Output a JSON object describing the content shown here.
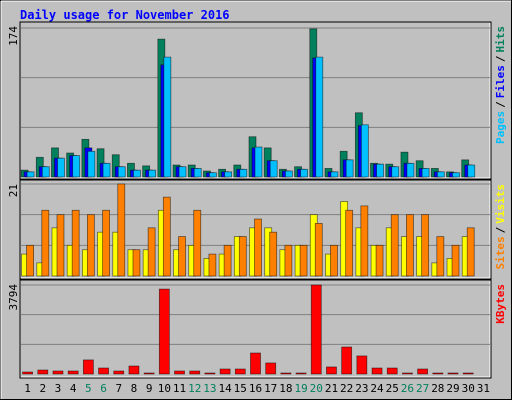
{
  "chart_data": {
    "type": "bar",
    "title": "Daily usage for November 2016",
    "categories": [
      "1",
      "2",
      "3",
      "4",
      "5",
      "6",
      "7",
      "8",
      "9",
      "10",
      "11",
      "12",
      "13",
      "14",
      "15",
      "16",
      "17",
      "18",
      "19",
      "20",
      "21",
      "22",
      "23",
      "24",
      "25",
      "26",
      "27",
      "28",
      "29",
      "30",
      "31"
    ],
    "category_colors": [
      "#000000",
      "#000000",
      "#000000",
      "#000000",
      "#00805c",
      "#00805c",
      "#000000",
      "#000000",
      "#000000",
      "#000000",
      "#000000",
      "#00805c",
      "#00805c",
      "#000000",
      "#000000",
      "#000000",
      "#000000",
      "#000000",
      "#00805c",
      "#00805c",
      "#000000",
      "#000000",
      "#000000",
      "#000000",
      "#000000",
      "#00805c",
      "#00805c",
      "#000000",
      "#000000",
      "#000000",
      "#000000"
    ],
    "legend_separator": "/",
    "panels": [
      {
        "ylim": [
          0,
          174
        ],
        "yticks": [
          174
        ],
        "gridlines": [
          58,
          116
        ],
        "series": [
          {
            "name": "Hits",
            "color": "#00805c",
            "values": [
              8,
              23,
              34,
              28,
              44,
              33,
              26,
              16,
              13,
              161,
              14,
              14,
              7,
              9,
              14,
              47,
              34,
              9,
              12,
              173,
              10,
              30,
              75,
              16,
              15,
              29,
              19,
              10,
              6,
              20,
              null
            ]
          },
          {
            "name": "Files",
            "color": "#0000ff",
            "values": [
              6,
              12,
              22,
              25,
              34,
              16,
              12,
              8,
              8,
              131,
              12,
              10,
              5,
              6,
              9,
              34,
              19,
              7,
              9,
              139,
              6,
              20,
              60,
              15,
              12,
              16,
              10,
              6,
              5,
              14,
              null
            ]
          },
          {
            "name": "Pages",
            "color": "#00c0ff",
            "values": [
              6,
              12,
              22,
              25,
              30,
              16,
              12,
              8,
              8,
              140,
              12,
              10,
              5,
              6,
              9,
              35,
              19,
              7,
              9,
              140,
              6,
              20,
              61,
              15,
              12,
              16,
              10,
              6,
              5,
              14,
              null
            ]
          }
        ]
      },
      {
        "ylim": [
          0,
          21
        ],
        "yticks": [
          21
        ],
        "gridlines": [
          7,
          14
        ],
        "series": [
          {
            "name": "Visits",
            "color": "#ffff00",
            "values": [
              5,
              3,
              11,
              7,
              6,
              10,
              10,
              6,
              6,
              15,
              6,
              7,
              4,
              5,
              9,
              11,
              11,
              6,
              7,
              14,
              5,
              17,
              11,
              7,
              11,
              9,
              9,
              3,
              4,
              9,
              null
            ]
          },
          {
            "name": "Sites",
            "color": "#ff8000",
            "values": [
              7,
              15,
              14,
              15,
              14,
              15,
              21,
              6,
              11,
              18,
              9,
              15,
              5,
              7,
              9,
              13,
              10,
              7,
              7,
              12,
              7,
              15,
              16,
              7,
              14,
              14,
              14,
              9,
              7,
              11,
              null
            ]
          }
        ]
      },
      {
        "ylim": [
          0,
          3794
        ],
        "yticks": [
          3794
        ],
        "gridlines": [
          1265,
          2529
        ],
        "series": [
          {
            "name": "KBytes",
            "color": "#ff0000",
            "values": [
              85,
              170,
              128,
              128,
              600,
              255,
              128,
              340,
              43,
              3620,
              128,
              128,
              43,
              213,
              213,
              895,
              470,
              43,
              43,
              3794,
              300,
              1150,
              770,
              255,
              255,
              43,
              213,
              43,
              43,
              43,
              null
            ]
          }
        ]
      }
    ]
  }
}
